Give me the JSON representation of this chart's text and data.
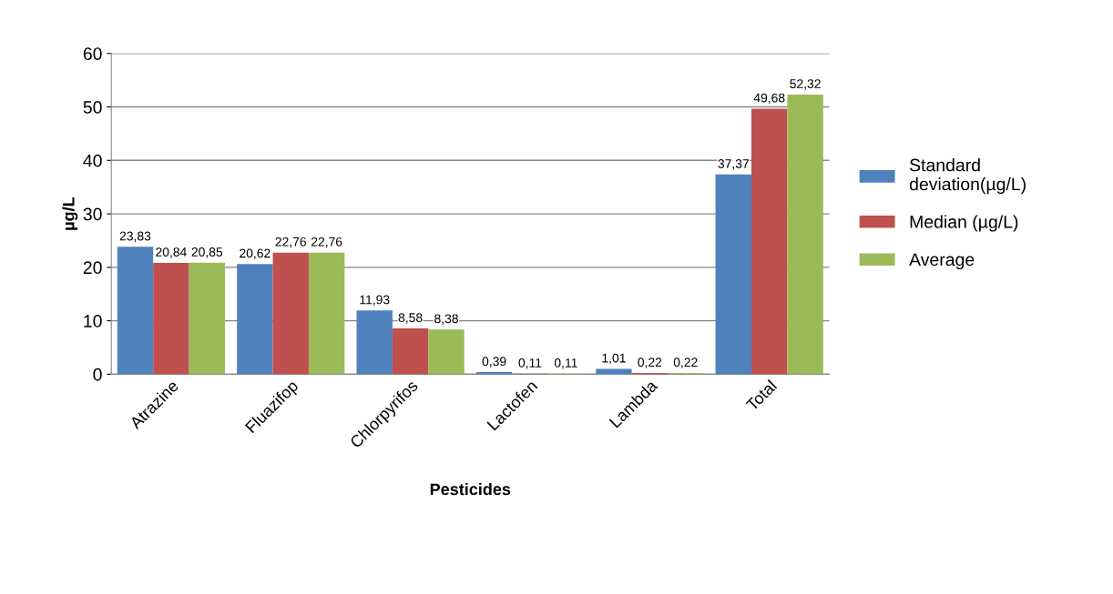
{
  "chart_data": {
    "type": "bar",
    "xlabel": "Pesticides",
    "ylabel": "µg/L",
    "categories": [
      "Atrazine",
      "Fluazifop",
      "Chlorpyrifos",
      "Lactofen",
      "Lambda",
      "Total"
    ],
    "series": [
      {
        "name": "Standard\ndeviation(µg/L)",
        "color": "#4f81bd",
        "values": [
          23.83,
          20.62,
          11.93,
          0.39,
          1.01,
          37.37
        ],
        "value_labels": [
          "23,83",
          "20,62",
          "11,93",
          "0,39",
          "1,01",
          "37,37"
        ]
      },
      {
        "name": "Median (µg/L)",
        "color": "#c0504d",
        "values": [
          20.84,
          22.76,
          8.58,
          0.11,
          0.22,
          49.68
        ],
        "value_labels": [
          "20,84",
          "22,76",
          "8,58",
          "0,11",
          "0,22",
          "49,68"
        ]
      },
      {
        "name": "Average",
        "color": "#9bbb59",
        "values": [
          20.85,
          22.76,
          8.38,
          0.11,
          0.22,
          52.32
        ],
        "value_labels": [
          "20,85",
          "22,76",
          "8,38",
          "0,11",
          "0,22",
          "52,32"
        ]
      }
    ],
    "ylim": [
      0,
      60
    ],
    "yticks": [
      0,
      10,
      20,
      30,
      40,
      50,
      60
    ],
    "grid": "y",
    "legend": "right"
  }
}
